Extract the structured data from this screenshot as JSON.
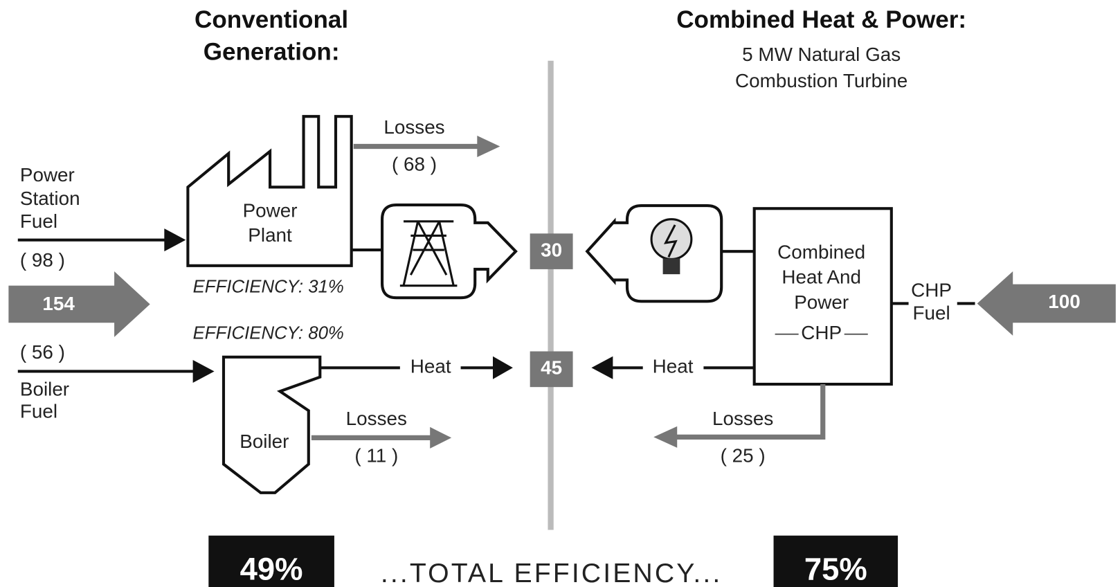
{
  "conventional": {
    "title": [
      "Conventional",
      "Generation:"
    ],
    "power_station_fuel": {
      "label": [
        "Power",
        "Station",
        "Fuel"
      ],
      "amount": "( 98 )"
    },
    "total_fuel": "154",
    "boiler_fuel": {
      "label": [
        "Boiler",
        "Fuel"
      ],
      "amount": "( 56 )"
    },
    "power_plant": {
      "label": [
        "Power",
        "Plant"
      ],
      "efficiency": "EFFICIENCY: 31%",
      "losses": {
        "label": "Losses",
        "amount": "( 68 )"
      }
    },
    "boiler": {
      "label": "Boiler",
      "efficiency": "EFFICIENCY: 80%",
      "heat": "Heat",
      "losses": {
        "label": "Losses",
        "amount": "( 11 )"
      }
    },
    "total_efficiency": "49%"
  },
  "outputs": {
    "electricity": "30",
    "heat": "45"
  },
  "chp": {
    "title": "Combined Heat & Power:",
    "subtitle": [
      "5 MW Natural Gas",
      "Combustion Turbine"
    ],
    "unit": {
      "label": [
        "Combined",
        "Heat And",
        "Power"
      ],
      "abbreviation": "CHP"
    },
    "heat": "Heat",
    "losses": {
      "label": "Losses",
      "amount": "( 25 )"
    },
    "fuel": {
      "label": [
        "CHP",
        "Fuel"
      ],
      "amount": "100"
    },
    "total_efficiency": "75%"
  },
  "footer": "...TOTAL EFFICIENCY..."
}
